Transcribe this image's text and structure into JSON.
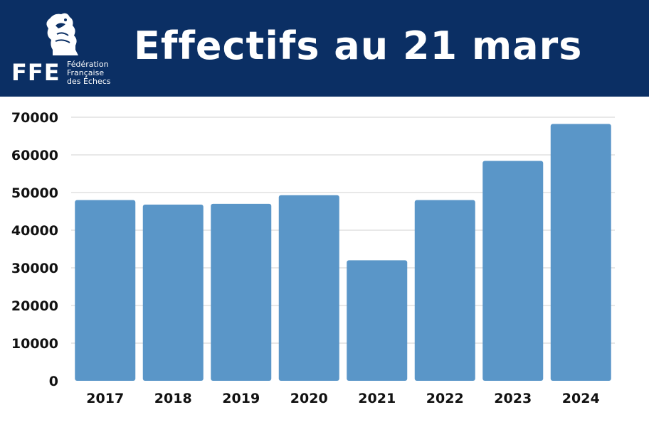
{
  "header": {
    "title": "Effectifs au 21 mars",
    "logo": {
      "acronym": "FFE",
      "name_lines": [
        "Fédération",
        "Française",
        "des Échecs"
      ],
      "icon": "rooster-chess-knight-icon"
    },
    "background_color": "#0b2f64"
  },
  "chart_data": {
    "type": "bar",
    "title": "Effectifs au 21 mars",
    "xlabel": "",
    "ylabel": "",
    "categories": [
      "2017",
      "2018",
      "2019",
      "2020",
      "2021",
      "2022",
      "2023",
      "2024"
    ],
    "values": [
      48000,
      46800,
      47000,
      49300,
      32000,
      48000,
      58400,
      68200
    ],
    "ylim": [
      0,
      70000
    ],
    "yticks": [
      "0",
      "10000",
      "20000",
      "30000",
      "40000",
      "50000",
      "60000",
      "70000"
    ],
    "grid": true,
    "legend": "none",
    "bar_color": "#5a96c8"
  }
}
